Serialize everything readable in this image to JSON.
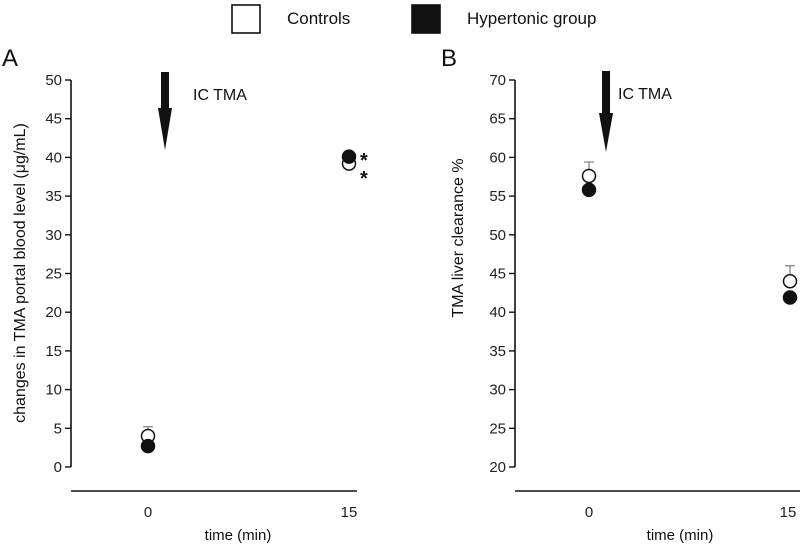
{
  "legend": {
    "controls_label": "Controls",
    "hypertonic_label": "Hypertonic group"
  },
  "colors": {
    "controls_fill": "#ffffff",
    "hypertonic_fill": "#111111",
    "axis": "#111111",
    "error_bar": "#888888"
  },
  "chart_data": [
    {
      "type": "scatter",
      "panel_label": "A",
      "ylabel": "changes in TMA portal blood level (μg/mL)",
      "xlabel": "time (min)",
      "categories": [
        "0",
        "15"
      ],
      "ylim": [
        0,
        50
      ],
      "yticks": [
        "0",
        "5",
        "10",
        "15",
        "20",
        "25",
        "30",
        "35",
        "40",
        "45",
        "50"
      ],
      "annotation": {
        "text": "IC TMA",
        "at_category": "0"
      },
      "series": [
        {
          "name": "Controls",
          "values": [
            4.0,
            39.2
          ],
          "errors": [
            1.2,
            0
          ]
        },
        {
          "name": "Hypertonic group",
          "values": [
            2.7,
            40.1
          ],
          "errors": [
            0,
            0
          ]
        }
      ],
      "significance": [
        {
          "category": "15",
          "series": "Hypertonic group",
          "text": "*"
        },
        {
          "category": "15",
          "series": "Controls",
          "text": "*"
        }
      ]
    },
    {
      "type": "scatter",
      "panel_label": "B",
      "ylabel": "TMA liver clearance %",
      "xlabel": "time (min)",
      "categories": [
        "0",
        "15"
      ],
      "ylim": [
        20,
        70
      ],
      "yticks": [
        "20",
        "25",
        "30",
        "35",
        "40",
        "45",
        "50",
        "55",
        "60",
        "65",
        "70"
      ],
      "annotation": {
        "text": "IC TMA",
        "at_category": "0"
      },
      "series": [
        {
          "name": "Controls",
          "values": [
            57.6,
            44.0
          ],
          "errors": [
            1.8,
            2.0
          ]
        },
        {
          "name": "Hypertonic group",
          "values": [
            55.8,
            41.9
          ],
          "errors": [
            0,
            0
          ]
        }
      ],
      "significance": []
    }
  ]
}
